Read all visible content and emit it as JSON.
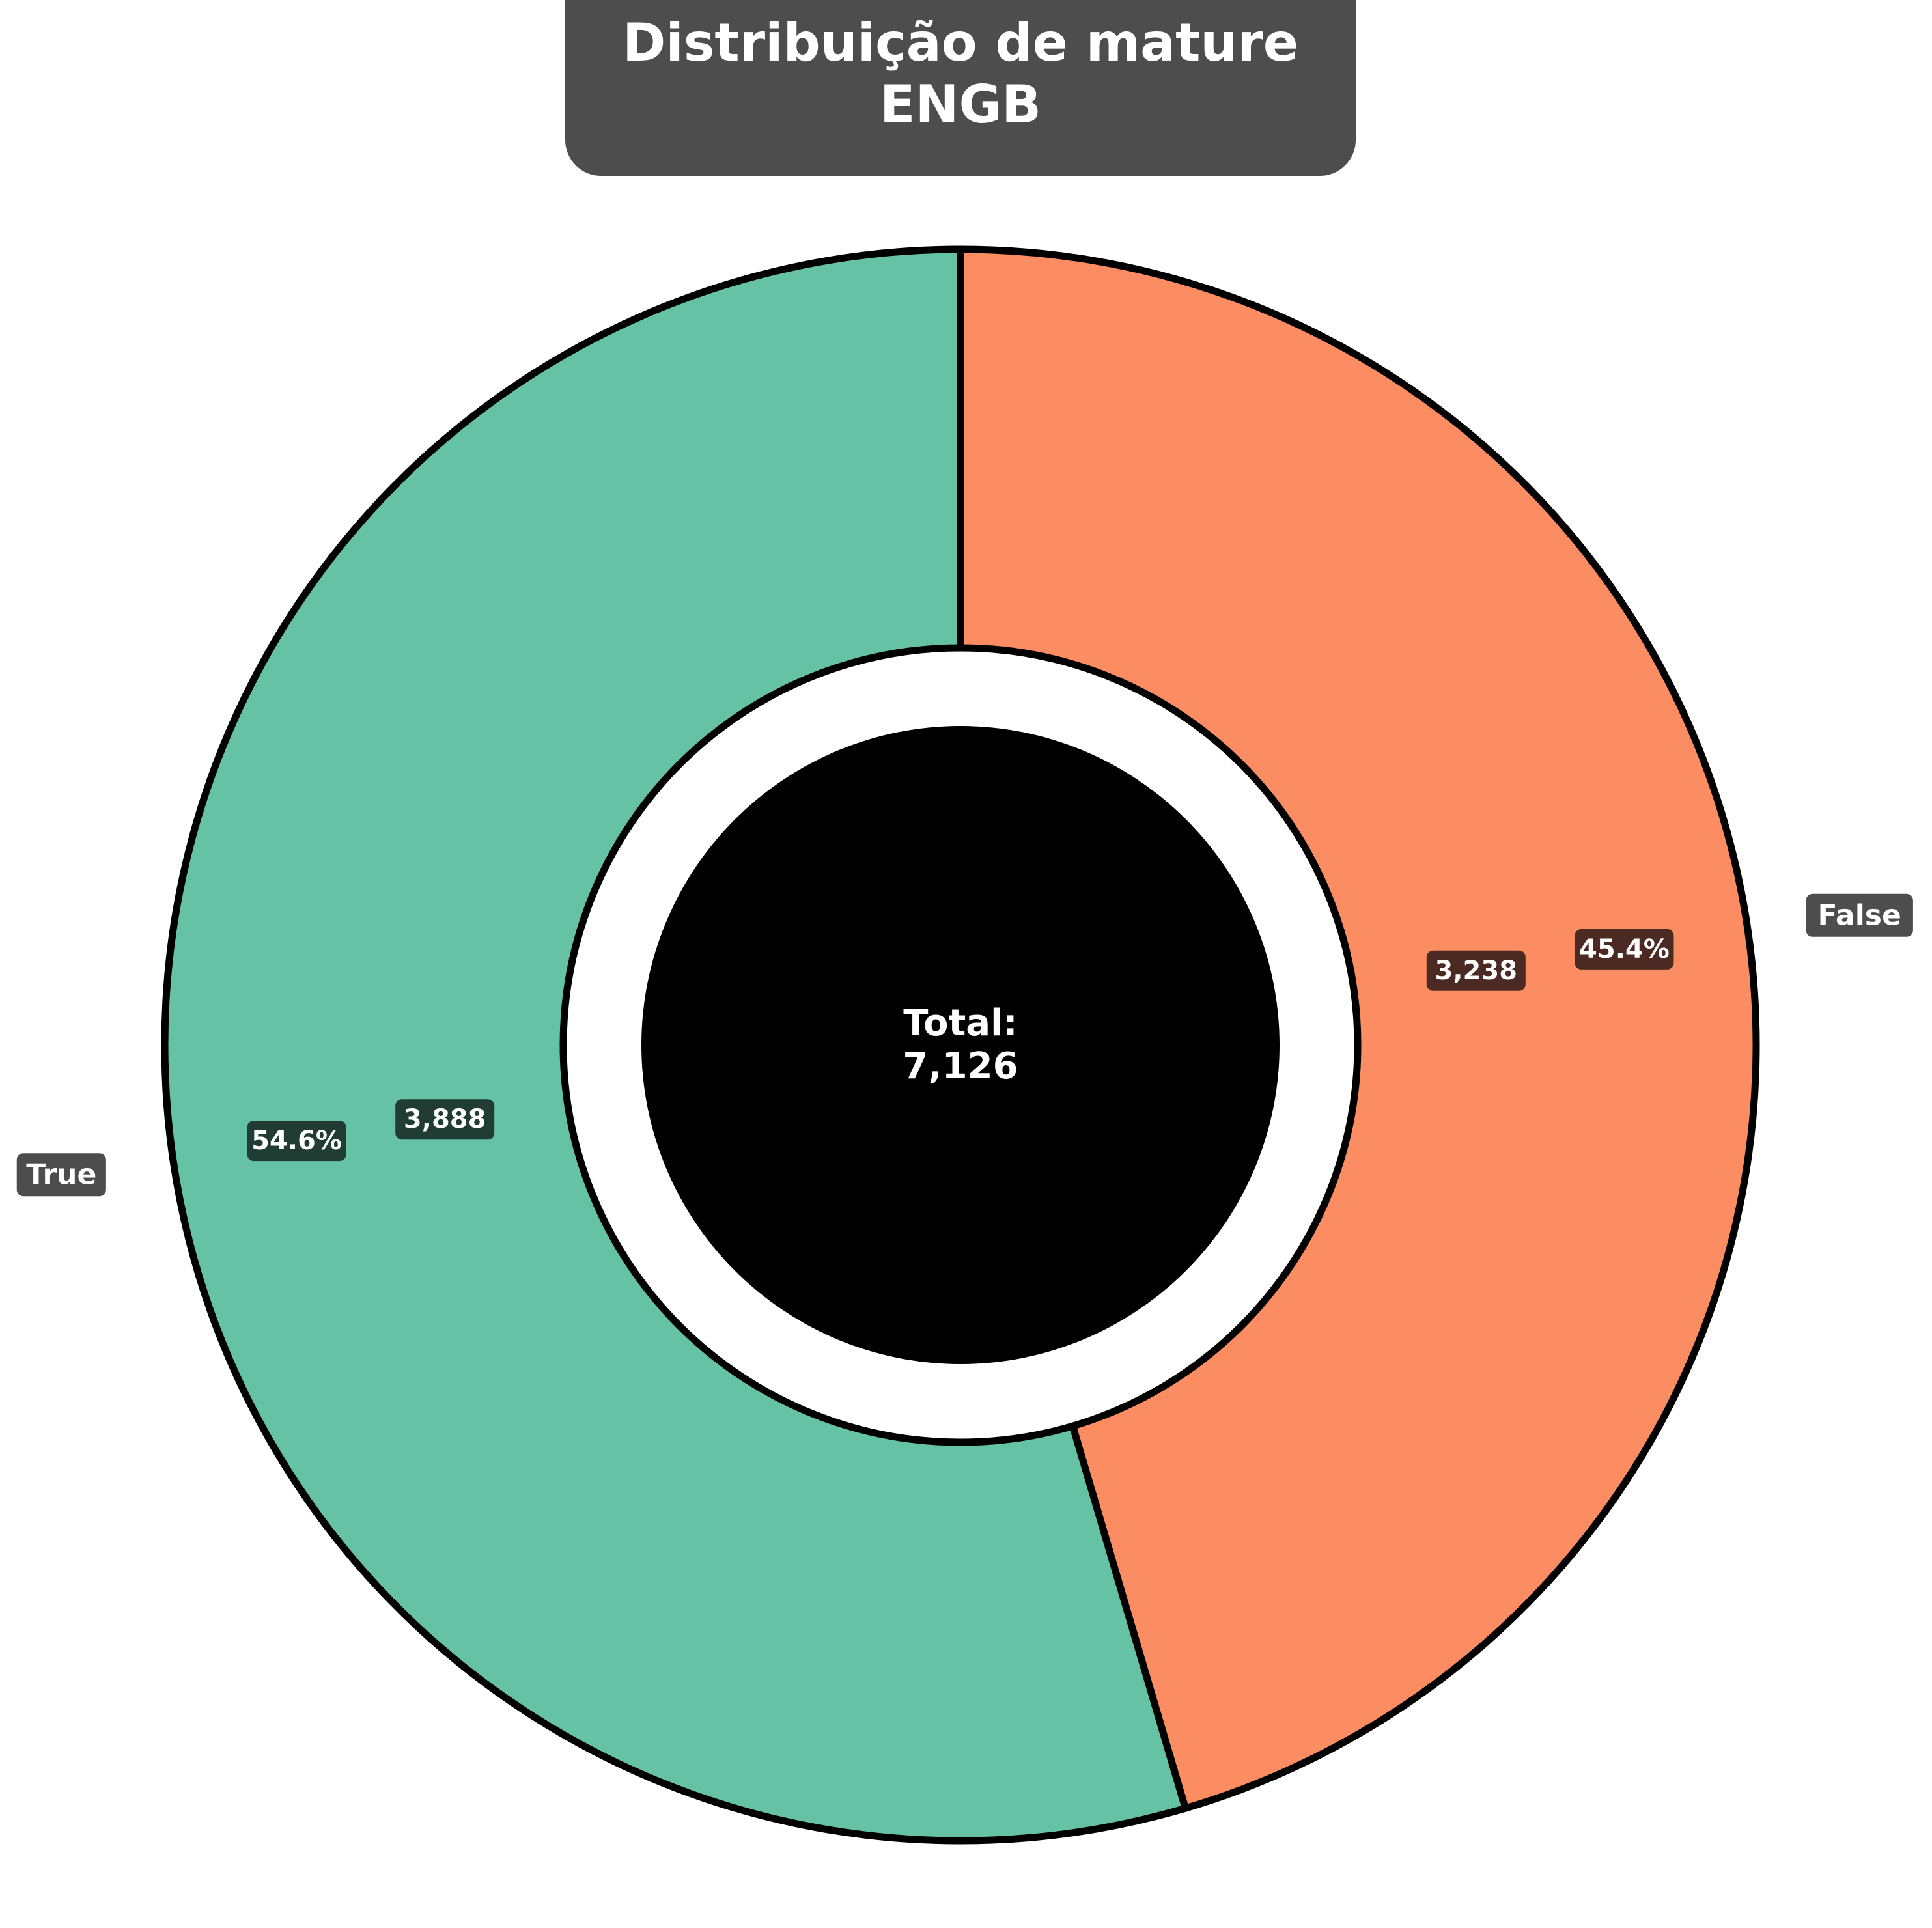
{
  "chart_data": {
    "type": "pie",
    "variant": "donut",
    "title_lines": [
      "Distribuição de mature",
      "ENGB"
    ],
    "categories": [
      "True",
      "False"
    ],
    "values": [
      3888,
      3238
    ],
    "value_labels": [
      "3,888",
      "3,238"
    ],
    "percent_labels": [
      "54.6%",
      "45.4%"
    ],
    "colors": [
      "#66c2a5",
      "#fc8d62"
    ],
    "center_label": [
      "Total:",
      "7,126"
    ],
    "legend": "none",
    "start_angle": "top, clockwise from False"
  }
}
